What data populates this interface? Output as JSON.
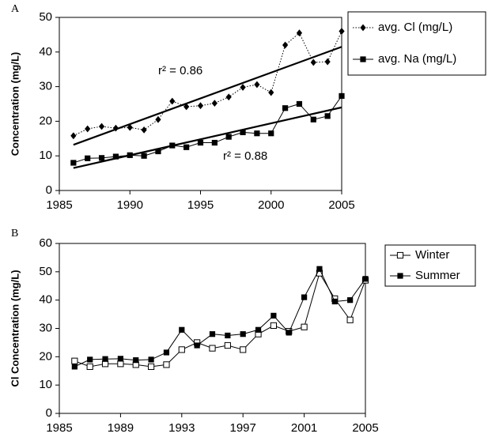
{
  "chart_data": [
    {
      "type": "line",
      "panel_label": "A",
      "ylabel": "Concentration (mg/L)",
      "xlim": [
        1985,
        2005
      ],
      "xticks": [
        1985,
        1990,
        1995,
        2000,
        2005
      ],
      "ylim": [
        0,
        50
      ],
      "yticks": [
        0,
        10,
        20,
        30,
        40,
        50
      ],
      "x": [
        1986,
        1987,
        1988,
        1989,
        1990,
        1991,
        1992,
        1993,
        1994,
        1995,
        1996,
        1997,
        1998,
        1999,
        2000,
        2001,
        2002,
        2003,
        2004,
        2005
      ],
      "series": [
        {
          "name": "avg. Cl (mg/L)",
          "color": "#000000",
          "marker": "diamond",
          "line_style": "dotted",
          "values": [
            15.8,
            17.8,
            18.5,
            18.0,
            18.2,
            17.5,
            20.5,
            25.8,
            24.2,
            24.5,
            25.2,
            27.0,
            29.8,
            30.6,
            28.3,
            42.0,
            45.5,
            37.0,
            37.2,
            46.0
          ]
        },
        {
          "name": "avg. Na (mg/L)",
          "color": "#000000",
          "marker": "square",
          "line_style": "solid",
          "values": [
            8.0,
            9.3,
            9.4,
            9.8,
            10.2,
            10.0,
            11.3,
            13.0,
            12.5,
            13.8,
            13.8,
            15.5,
            16.8,
            16.5,
            16.5,
            23.8,
            25.0,
            20.5,
            21.5,
            27.3
          ]
        }
      ],
      "trend_lines": [
        {
          "x": [
            1986,
            2005
          ],
          "values": [
            13.2,
            41.5
          ]
        },
        {
          "x": [
            1986,
            2005
          ],
          "values": [
            6.5,
            24.0
          ]
        }
      ],
      "annotations": [
        "r² = 0.86",
        "r² = 0.88"
      ],
      "legend": "outside-right"
    },
    {
      "type": "line",
      "panel_label": "B",
      "ylabel": "Cl Concentration (mg/L)",
      "xlim": [
        1985,
        2005
      ],
      "xticks": [
        1985,
        1989,
        1993,
        1997,
        2001,
        2005
      ],
      "ylim": [
        0,
        60
      ],
      "yticks": [
        0,
        10,
        20,
        30,
        40,
        50,
        60
      ],
      "x": [
        1986,
        1987,
        1988,
        1989,
        1990,
        1991,
        1992,
        1993,
        1994,
        1995,
        1996,
        1997,
        1998,
        1999,
        2000,
        2001,
        2002,
        2003,
        2004,
        2005
      ],
      "series": [
        {
          "name": "Winter",
          "color": "#000000",
          "marker": "open-square",
          "line_style": "solid",
          "values": [
            18.5,
            16.5,
            17.5,
            17.5,
            17.2,
            16.5,
            17.2,
            22.5,
            25.0,
            23.0,
            24.0,
            22.5,
            28.0,
            31.0,
            29.0,
            30.5,
            49.5,
            40.5,
            33.0,
            47.0
          ]
        },
        {
          "name": "Summer",
          "color": "#000000",
          "marker": "square",
          "line_style": "solid",
          "values": [
            16.5,
            19.0,
            19.2,
            19.3,
            18.8,
            19.0,
            21.5,
            29.5,
            24.0,
            28.0,
            27.5,
            28.0,
            29.5,
            34.5,
            28.5,
            41.0,
            51.0,
            39.5,
            40.0,
            47.5
          ]
        }
      ],
      "legend": "outside-right"
    }
  ]
}
